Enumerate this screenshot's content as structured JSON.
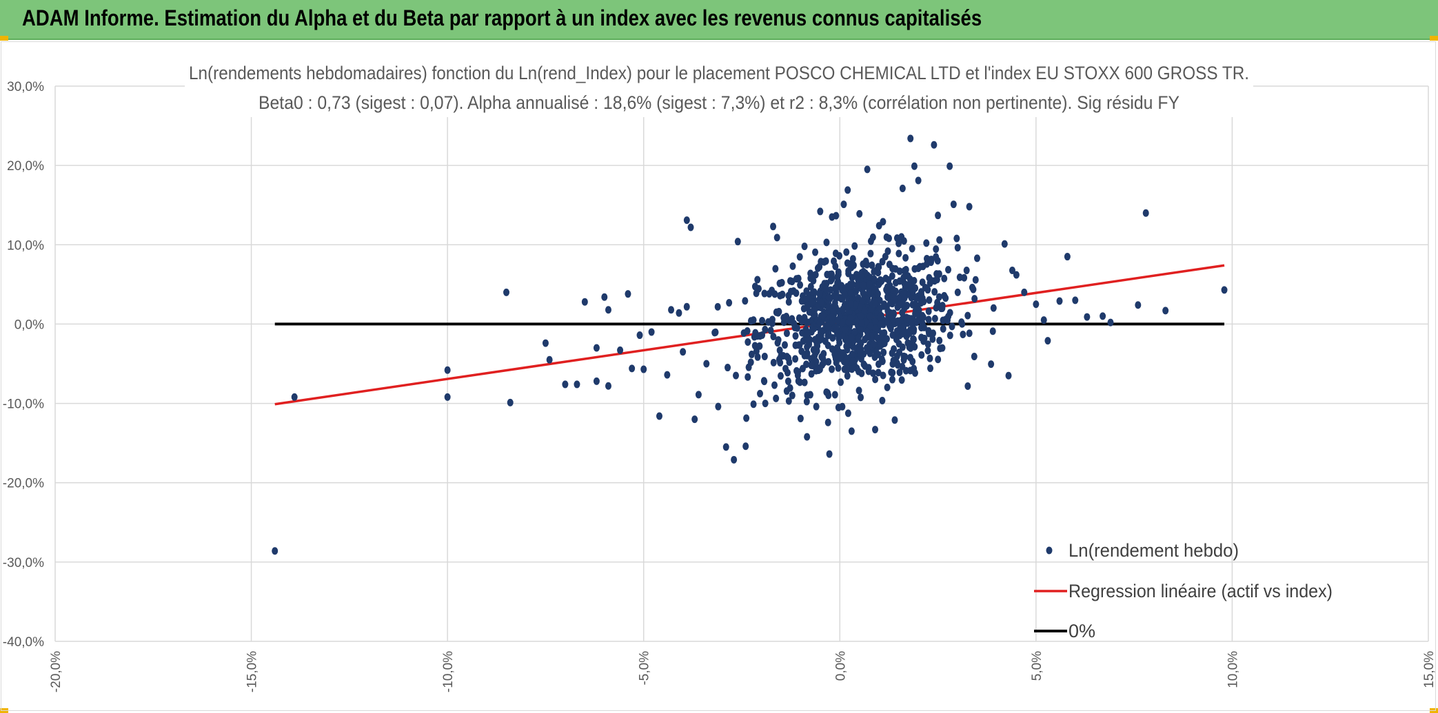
{
  "header": {
    "title": "ADAM Informe. Estimation du Alpha et du Beta par rapport à un index avec les revenus connus capitalisés"
  },
  "colors": {
    "banner": "#7dc57a",
    "points": "#1f3a6b",
    "regression": "#e02020",
    "zero_line": "#000000",
    "grid": "#d9d9d9"
  },
  "chart_data": {
    "type": "scatter",
    "title": "Ln(rendements hebdomadaires) fonction du Ln(rend_Index) pour le placement POSCO CHEMICAL LTD et l'index EU STOXX 600 GROSS TR.",
    "subtitle": "Beta0 : 0,73 (sigest : 0,07). Alpha annualisé : 18,6% (sigest : 7,3%) et r2 : 8,3% (corrélation non pertinente). Sig résidu FY",
    "xlabel": "",
    "ylabel": "",
    "xlim": [
      -20,
      15
    ],
    "ylim": [
      -40,
      30
    ],
    "x_ticks": [
      "-20,0%",
      "-15,0%",
      "-10,0%",
      "-5,0%",
      "0,0%",
      "5,0%",
      "10,0%",
      "15,0%"
    ],
    "y_ticks": [
      "30,0%",
      "20,0%",
      "10,0%",
      "0,0%",
      "-10,0%",
      "-20,0%",
      "-30,0%",
      "-40,0%"
    ],
    "grid": true,
    "legend_position": "bottom-right",
    "series": [
      {
        "name": "Ln(rendement hebdo)",
        "kind": "scatter",
        "points": [
          [
            -14.4,
            -28.6
          ],
          [
            -13.9,
            -9.2
          ],
          [
            -10.0,
            -5.8
          ],
          [
            -10.0,
            -9.2
          ],
          [
            -8.5,
            4.0
          ],
          [
            -8.4,
            -9.9
          ],
          [
            -7.5,
            -2.4
          ],
          [
            -7.4,
            -4.5
          ],
          [
            -7.0,
            -7.6
          ],
          [
            -6.7,
            -7.6
          ],
          [
            -6.5,
            2.8
          ],
          [
            -6.2,
            -7.2
          ],
          [
            -6.2,
            -3.0
          ],
          [
            -6.0,
            3.4
          ],
          [
            -5.9,
            -7.8
          ],
          [
            -5.9,
            1.8
          ],
          [
            -5.6,
            -3.3
          ],
          [
            -5.4,
            3.8
          ],
          [
            -5.3,
            -5.6
          ],
          [
            -5.1,
            -1.4
          ],
          [
            -5.0,
            -5.7
          ],
          [
            -4.8,
            -1.0
          ],
          [
            -4.6,
            -11.6
          ],
          [
            -4.4,
            -6.4
          ],
          [
            -4.3,
            1.8
          ],
          [
            -4.1,
            1.4
          ],
          [
            -4.0,
            -3.5
          ],
          [
            -3.9,
            13.1
          ],
          [
            -3.8,
            12.2
          ],
          [
            -3.7,
            -12.0
          ],
          [
            -3.6,
            -8.9
          ],
          [
            -3.4,
            -5.0
          ],
          [
            -3.1,
            -10.4
          ],
          [
            -2.9,
            -15.5
          ],
          [
            -2.7,
            -17.1
          ],
          [
            -2.6,
            10.4
          ],
          [
            -2.4,
            -15.4
          ],
          [
            -2.2,
            0.5
          ],
          [
            -2.2,
            -10.1
          ],
          [
            -2.1,
            5.6
          ],
          [
            -1.9,
            -10.0
          ],
          [
            -1.7,
            12.3
          ],
          [
            -1.6,
            10.9
          ],
          [
            -1.3,
            -9.7
          ],
          [
            -1.2,
            7.3
          ],
          [
            -1.0,
            -11.9
          ],
          [
            -0.9,
            9.8
          ],
          [
            -0.6,
            -10.4
          ],
          [
            -0.5,
            14.2
          ],
          [
            -0.3,
            -12.4
          ],
          [
            -0.2,
            13.5
          ],
          [
            0.1,
            15.1
          ],
          [
            0.2,
            16.9
          ],
          [
            0.3,
            -13.5
          ],
          [
            0.5,
            13.9
          ],
          [
            0.7,
            19.5
          ],
          [
            0.9,
            -13.3
          ],
          [
            1.0,
            12.4
          ],
          [
            1.1,
            12.9
          ],
          [
            1.4,
            -12.1
          ],
          [
            1.6,
            17.1
          ],
          [
            1.8,
            23.4
          ],
          [
            1.9,
            19.9
          ],
          [
            2.0,
            18.1
          ],
          [
            2.4,
            22.6
          ],
          [
            2.5,
            13.7
          ],
          [
            2.8,
            19.9
          ],
          [
            2.9,
            15.1
          ],
          [
            3.3,
            14.8
          ],
          [
            3.5,
            8.3
          ],
          [
            3.9,
            -0.9
          ],
          [
            4.2,
            10.1
          ],
          [
            4.3,
            -6.5
          ],
          [
            4.5,
            6.2
          ],
          [
            4.7,
            4.0
          ],
          [
            5.0,
            2.5
          ],
          [
            5.2,
            0.5
          ],
          [
            5.3,
            -2.1
          ],
          [
            5.6,
            2.9
          ],
          [
            5.8,
            8.5
          ],
          [
            6.0,
            3.0
          ],
          [
            6.3,
            0.9
          ],
          [
            6.7,
            1.0
          ],
          [
            6.9,
            0.2
          ],
          [
            7.6,
            2.4
          ],
          [
            7.8,
            14.0
          ],
          [
            8.3,
            1.7
          ],
          [
            9.8,
            4.3
          ]
        ]
      },
      {
        "name": "Regression linéaire (actif vs index)",
        "kind": "line",
        "x": [
          -14.4,
          9.8
        ],
        "y": [
          -10.1,
          7.4
        ]
      },
      {
        "name": "0%",
        "kind": "line",
        "x": [
          -14.4,
          9.8
        ],
        "y": [
          0,
          0
        ]
      }
    ]
  }
}
